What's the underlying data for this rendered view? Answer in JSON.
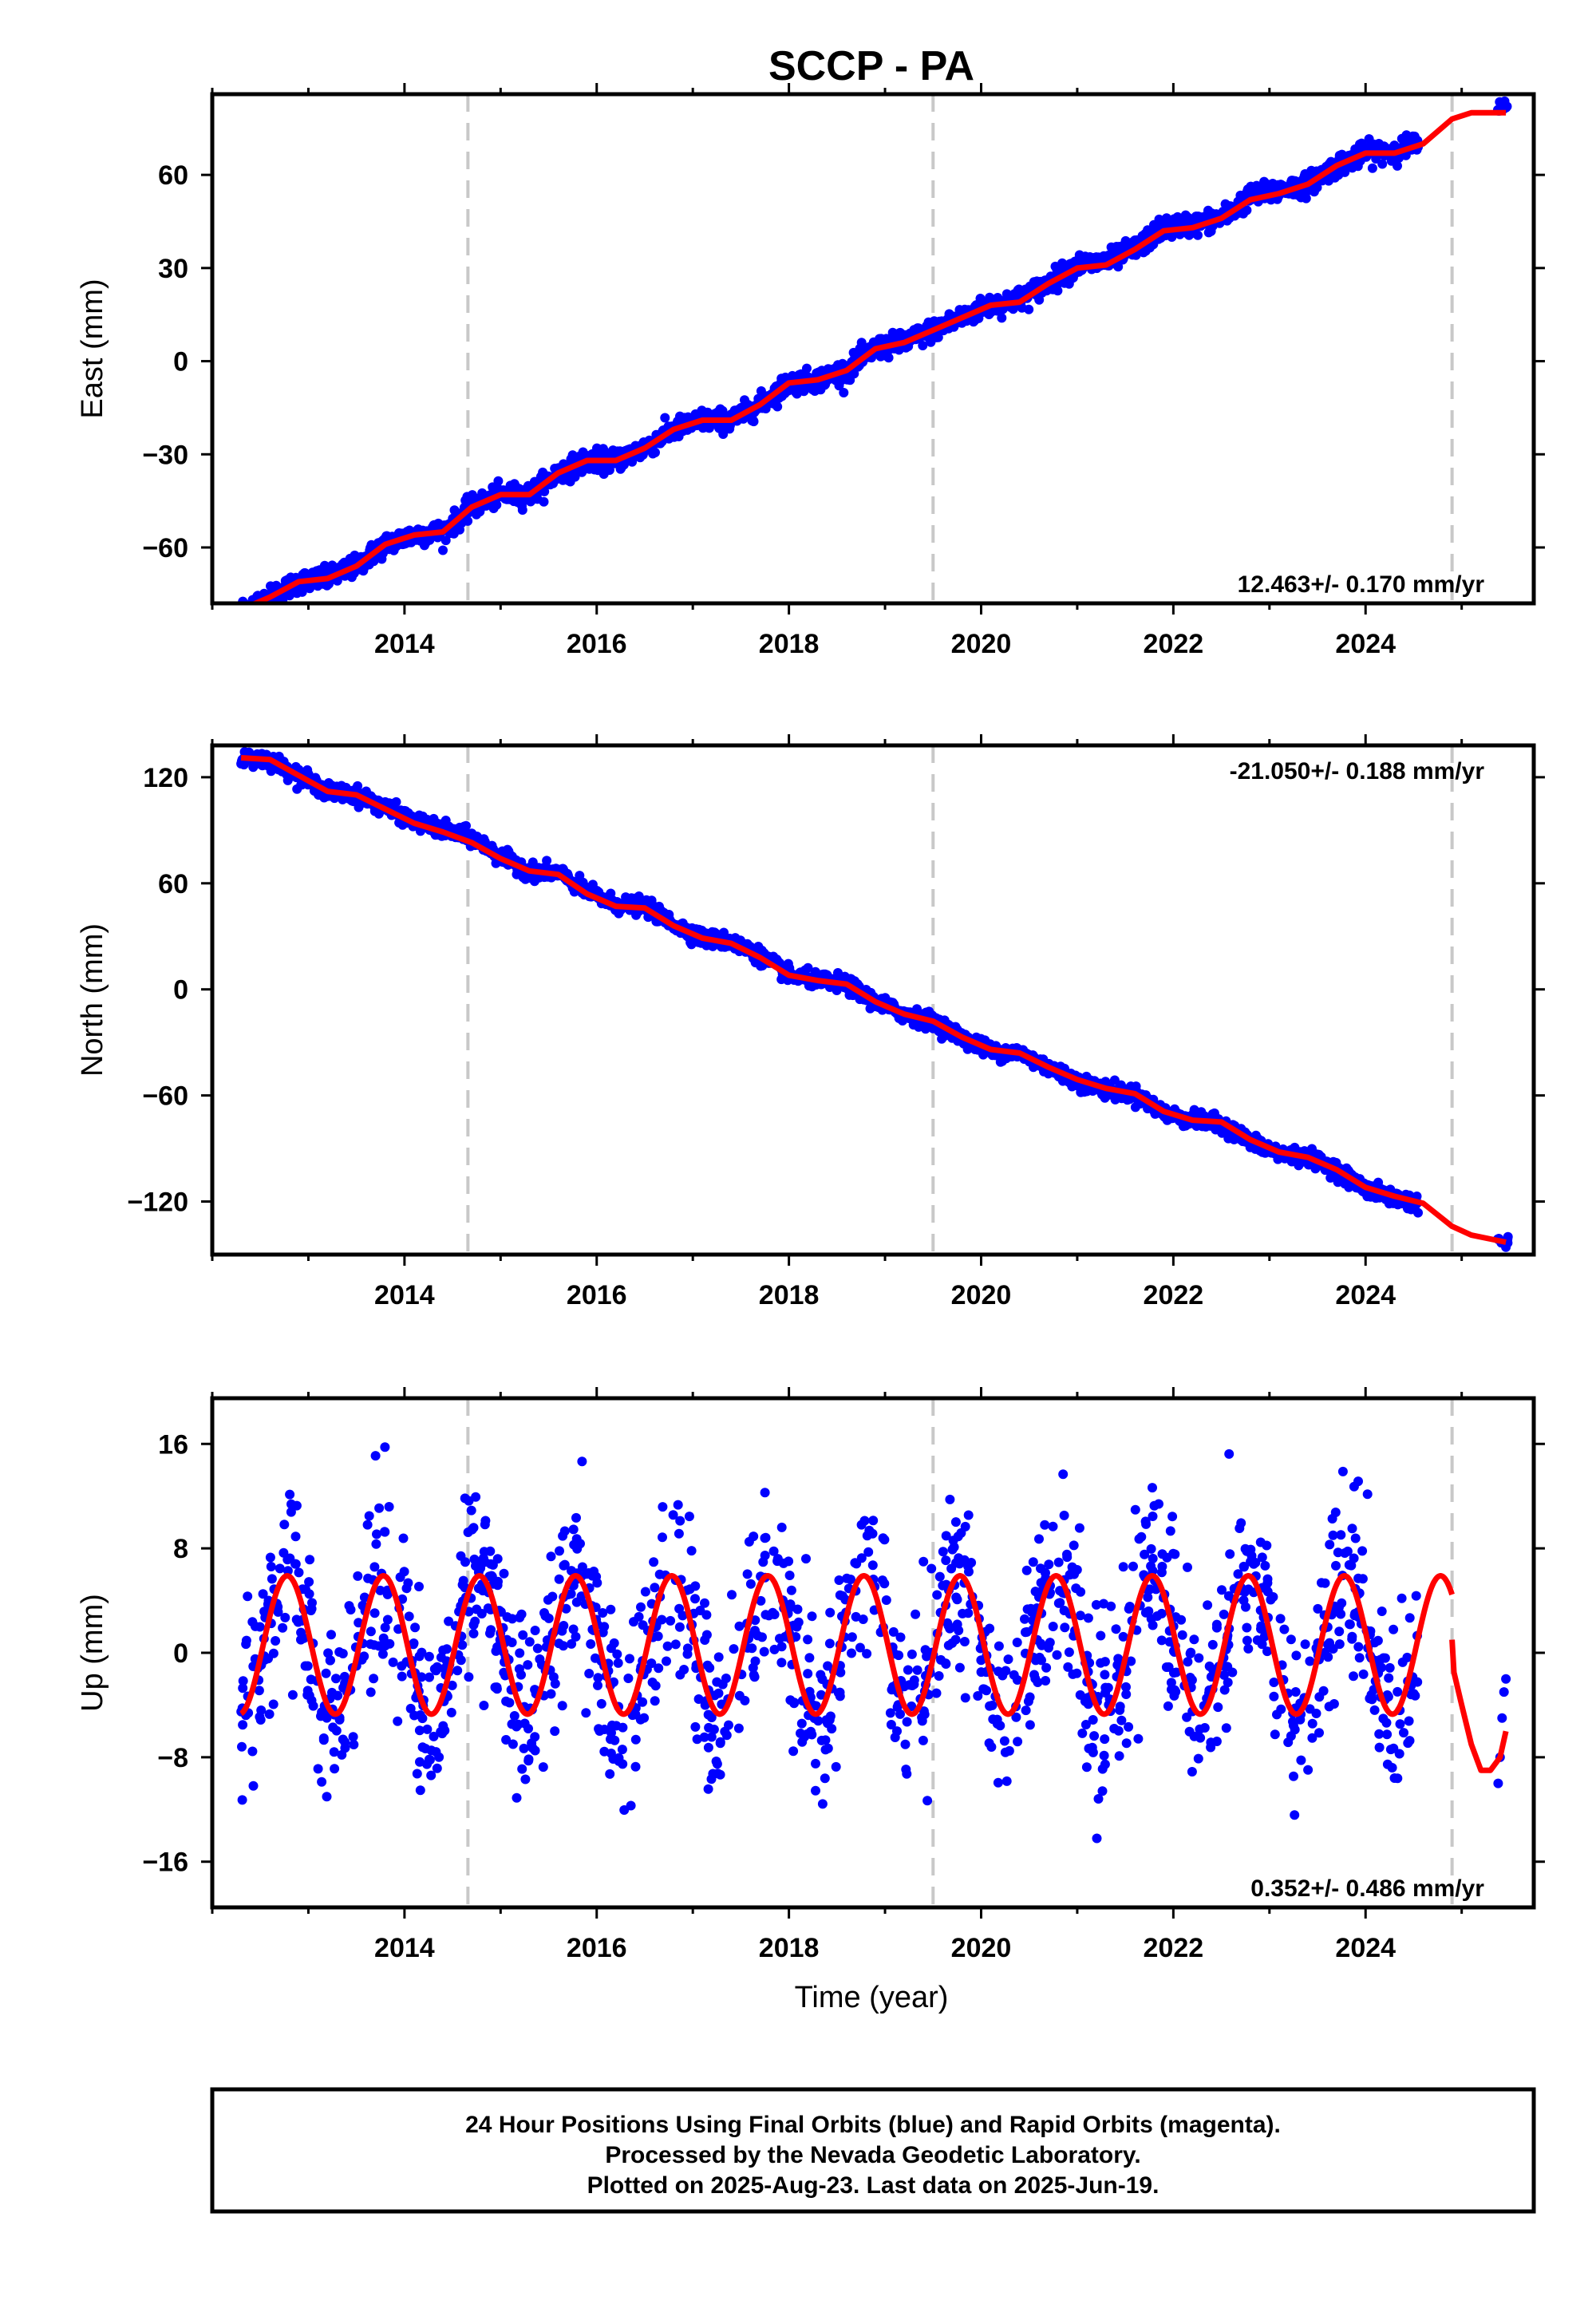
{
  "title": "SCCP - PA",
  "xlabel": "Time (year)",
  "colors": {
    "data": "#0000ff",
    "model": "#ff0000",
    "event_line": "#c8c8c8"
  },
  "footer": {
    "line1": "24 Hour Positions Using Final Orbits (blue) and Rapid Orbits (magenta).",
    "line2": "Processed by the Nevada Geodetic Laboratory.",
    "line3": "Plotted on 2025-Aug-23. Last data on 2025-Jun-19."
  },
  "chart_data": [
    {
      "type": "scatter",
      "panel": "east",
      "ylabel": "East (mm)",
      "rate_label": "12.463+/- 0.170 mm/yr",
      "rate_position": "bottom-right",
      "xlim": [
        2012.0,
        2025.75
      ],
      "ylim": [
        -78,
        86
      ],
      "xticks": [
        2014,
        2016,
        2018,
        2020,
        2022,
        2024
      ],
      "yticks": [
        -60,
        -30,
        0,
        30,
        60
      ],
      "event_lines": [
        2014.66,
        2019.5,
        2024.9
      ],
      "data_gap": [
        2024.6,
        2025.35
      ],
      "series": [
        {
          "kind": "points",
          "x": [
            2012.3,
            2012.6,
            2012.9,
            2013.2,
            2013.5,
            2013.8,
            2014.1,
            2014.4,
            2014.7,
            2015.0,
            2015.3,
            2015.6,
            2015.9,
            2016.2,
            2016.5,
            2016.8,
            2017.1,
            2017.4,
            2017.7,
            2018.0,
            2018.3,
            2018.6,
            2018.9,
            2019.2,
            2019.5,
            2019.8,
            2020.1,
            2020.4,
            2020.7,
            2021.0,
            2021.3,
            2021.6,
            2021.9,
            2022.2,
            2022.5,
            2022.8,
            2023.1,
            2023.4,
            2023.7,
            2024.0,
            2024.3,
            2024.55,
            2025.4,
            2025.46
          ],
          "y": [
            -80,
            -76,
            -71,
            -70,
            -66,
            -59,
            -56,
            -55,
            -47,
            -43,
            -43,
            -36,
            -32,
            -32,
            -28,
            -22,
            -19,
            -19,
            -14,
            -7,
            -6,
            -3,
            4,
            6,
            10,
            14,
            18,
            20,
            25,
            31,
            32,
            36,
            43,
            44,
            46,
            53,
            55,
            57,
            63,
            67,
            68,
            70,
            81,
            82
          ]
        },
        {
          "kind": "model",
          "x": [
            2012.3,
            2012.6,
            2012.9,
            2013.2,
            2013.5,
            2013.8,
            2014.1,
            2014.4,
            2014.7,
            2015.0,
            2015.3,
            2015.6,
            2015.9,
            2016.2,
            2016.5,
            2016.8,
            2017.1,
            2017.4,
            2017.7,
            2018.0,
            2018.3,
            2018.6,
            2018.9,
            2019.2,
            2019.5,
            2019.8,
            2020.1,
            2020.4,
            2020.7,
            2021.0,
            2021.3,
            2021.6,
            2021.9,
            2022.2,
            2022.5,
            2022.8,
            2023.1,
            2023.4,
            2023.7,
            2024.0,
            2024.3,
            2024.6,
            2024.9,
            2025.1,
            2025.46
          ],
          "y": [
            -80,
            -76,
            -71,
            -70,
            -66,
            -59,
            -56,
            -55,
            -47,
            -43,
            -43,
            -36,
            -32,
            -32,
            -28,
            -22,
            -19,
            -19,
            -14,
            -7,
            -6,
            -3,
            4,
            6,
            10,
            14,
            18,
            19,
            25,
            30,
            31,
            36,
            42,
            43,
            46,
            52,
            54,
            57,
            63,
            67,
            67,
            70,
            78,
            80,
            80
          ]
        }
      ]
    },
    {
      "type": "scatter",
      "panel": "north",
      "ylabel": "North (mm)",
      "rate_label": "-21.050+/- 0.188 mm/yr",
      "rate_position": "top-right",
      "xlim": [
        2012.0,
        2025.75
      ],
      "ylim": [
        -150,
        138
      ],
      "xticks": [
        2014,
        2016,
        2018,
        2020,
        2022,
        2024
      ],
      "yticks": [
        -120,
        -60,
        0,
        60,
        120
      ],
      "event_lines": [
        2014.66,
        2019.5,
        2024.9
      ],
      "data_gap": [
        2024.6,
        2025.35
      ],
      "series": [
        {
          "kind": "points",
          "x": [
            2012.3,
            2012.6,
            2012.9,
            2013.2,
            2013.5,
            2013.8,
            2014.1,
            2014.4,
            2014.7,
            2015.0,
            2015.3,
            2015.6,
            2015.9,
            2016.2,
            2016.5,
            2016.8,
            2017.1,
            2017.4,
            2017.7,
            2018.0,
            2018.3,
            2018.6,
            2018.9,
            2019.2,
            2019.5,
            2019.8,
            2020.1,
            2020.4,
            2020.7,
            2021.0,
            2021.3,
            2021.6,
            2021.9,
            2022.2,
            2022.5,
            2022.8,
            2023.1,
            2023.4,
            2023.7,
            2024.0,
            2024.3,
            2024.55,
            2025.4,
            2025.46
          ],
          "y": [
            131,
            130,
            121,
            112,
            110,
            103,
            95,
            90,
            86,
            75,
            67,
            66,
            55,
            48,
            47,
            37,
            29,
            27,
            19,
            8,
            5,
            3,
            -7,
            -14,
            -18,
            -27,
            -35,
            -36,
            -44,
            -52,
            -57,
            -59,
            -70,
            -74,
            -76,
            -86,
            -93,
            -95,
            -102,
            -113,
            -118,
            -121,
            -142,
            -143
          ]
        },
        {
          "kind": "model",
          "x": [
            2012.3,
            2012.6,
            2012.9,
            2013.2,
            2013.5,
            2013.8,
            2014.1,
            2014.4,
            2014.7,
            2015.0,
            2015.3,
            2015.6,
            2015.9,
            2016.2,
            2016.5,
            2016.8,
            2017.1,
            2017.4,
            2017.7,
            2018.0,
            2018.3,
            2018.6,
            2018.9,
            2019.2,
            2019.5,
            2019.8,
            2020.1,
            2020.4,
            2020.7,
            2021.0,
            2021.3,
            2021.6,
            2021.9,
            2022.2,
            2022.5,
            2022.8,
            2023.1,
            2023.4,
            2023.7,
            2024.0,
            2024.3,
            2024.6,
            2024.9,
            2025.1,
            2025.46
          ],
          "y": [
            131,
            130,
            121,
            112,
            110,
            102,
            94,
            89,
            83,
            74,
            67,
            65,
            54,
            47,
            46,
            36,
            29,
            26,
            18,
            8,
            5,
            3,
            -7,
            -14,
            -18,
            -27,
            -34,
            -36,
            -44,
            -51,
            -56,
            -59,
            -69,
            -74,
            -75,
            -85,
            -92,
            -95,
            -102,
            -112,
            -117,
            -121,
            -134,
            -139,
            -143
          ]
        }
      ]
    },
    {
      "type": "scatter",
      "panel": "up",
      "ylabel": "Up (mm)",
      "rate_label": "0.352+/- 0.486 mm/yr",
      "rate_position": "bottom-right",
      "xlim": [
        2012.0,
        2025.75
      ],
      "ylim": [
        -19.5,
        19.5
      ],
      "xticks": [
        2014,
        2016,
        2018,
        2020,
        2022,
        2024
      ],
      "yticks": [
        -16,
        -8,
        0,
        8,
        16
      ],
      "event_lines": [
        2014.66,
        2019.5,
        2024.9
      ],
      "data_gap": [
        2024.6,
        2025.35
      ],
      "series": [
        {
          "kind": "seasonal_model",
          "amplitude": 5.3,
          "offset": 0.6,
          "phase_peak": 0.78,
          "period": 1.0,
          "x_start": 2012.3,
          "x_end": 2024.9
        },
        {
          "kind": "model",
          "x": [
            2024.9,
            2024.92,
            2025.0,
            2025.1,
            2025.2,
            2025.3,
            2025.4,
            2025.46
          ],
          "y": [
            1,
            -1.5,
            -4,
            -7,
            -9,
            -9,
            -8,
            -6
          ]
        },
        {
          "kind": "points_seasonal",
          "scatter_sd": 3.4,
          "x_start": 2012.3,
          "x_end": 2024.55,
          "count": 1400,
          "extra_x": [
            2025.38,
            2025.4,
            2025.42,
            2025.44,
            2025.46
          ],
          "extra_y": [
            -10,
            -8,
            -5,
            -3,
            -2
          ]
        }
      ]
    }
  ]
}
